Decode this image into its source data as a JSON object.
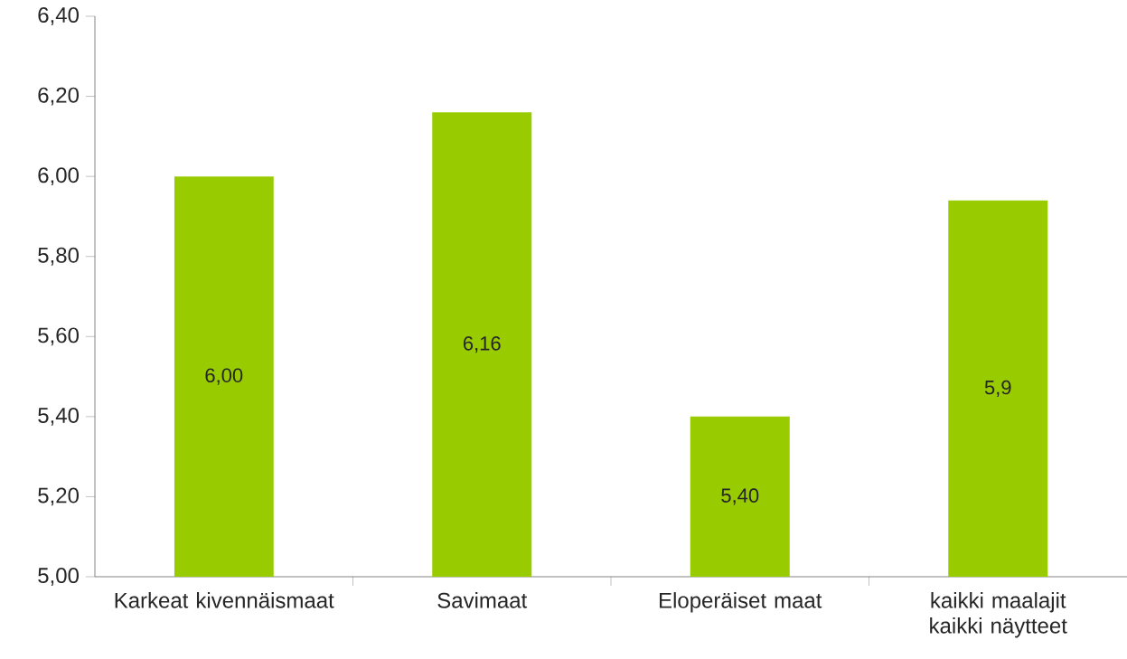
{
  "chart_data": {
    "type": "bar",
    "categories": [
      "Karkeat kivennäismaat",
      "Savimaat",
      "Eloperäiset maat",
      "kaikki maalajit kaikki näytteet"
    ],
    "values": [
      6.0,
      6.16,
      5.4,
      5.94
    ],
    "value_labels": [
      "6,00",
      "6,16",
      "5,40",
      "5,9"
    ],
    "color": "#99cc00",
    "ylim": [
      5.0,
      6.4
    ],
    "yticks": [
      {
        "value": 5.0,
        "label": "5,00"
      },
      {
        "value": 5.2,
        "label": "5,20"
      },
      {
        "value": 5.4,
        "label": "5,40"
      },
      {
        "value": 5.6,
        "label": "5,60"
      },
      {
        "value": 5.8,
        "label": "5,80"
      },
      {
        "value": 6.0,
        "label": "6,00"
      },
      {
        "value": 6.2,
        "label": "6,20"
      },
      {
        "value": 6.4,
        "label": "6,40"
      }
    ],
    "grid": false
  }
}
